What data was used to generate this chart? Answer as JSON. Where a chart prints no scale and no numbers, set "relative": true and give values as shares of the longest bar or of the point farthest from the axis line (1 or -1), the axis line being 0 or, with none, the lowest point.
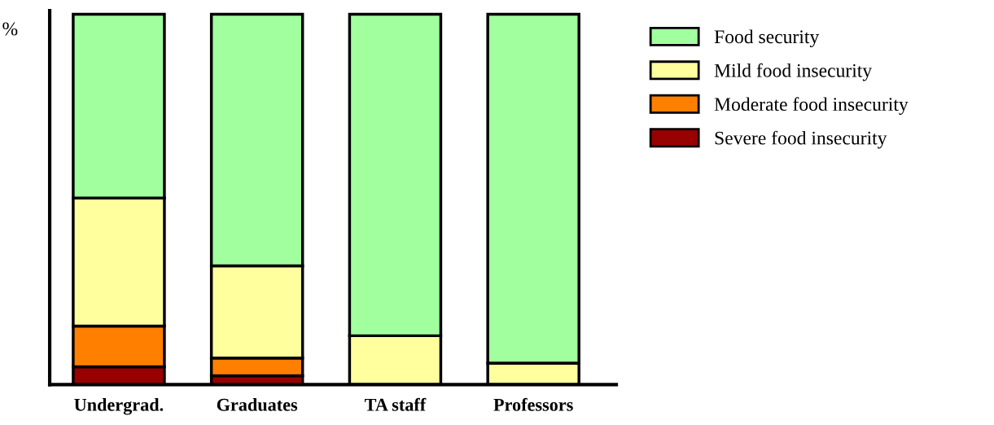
{
  "chart_data": {
    "type": "bar",
    "stacked": true,
    "relative": true,
    "ylabel": "%",
    "legend": "right",
    "grid": false,
    "categories": [
      "Undergrad.",
      "Graduates",
      "TA staff",
      "Professors"
    ],
    "series": [
      {
        "name": "Severe food insecurity",
        "color": "#990000",
        "values": [
          0.048,
          0.024,
          null,
          null
        ]
      },
      {
        "name": "Moderate food insecurity",
        "color": "#ff8000",
        "values": [
          0.11,
          0.048,
          0,
          0
        ]
      },
      {
        "name": "Mild food insecurity",
        "color": "#ffff9e",
        "values": [
          0.346,
          0.249,
          0.132,
          0.058
        ]
      },
      {
        "name": "Food security",
        "color": "#a2ff9e",
        "values": [
          0.496,
          0.679,
          0.868,
          0.942
        ]
      }
    ]
  }
}
